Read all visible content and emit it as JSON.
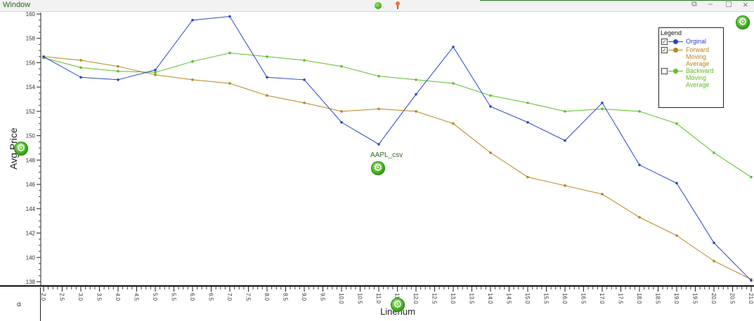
{
  "window": {
    "title": "Window"
  },
  "controls": {
    "restore": "⧉",
    "minimize": "–",
    "maximize": "☐",
    "close": "×"
  },
  "dataset_label": "AAPL_csv",
  "alpha_label": "α",
  "colors": {
    "original": "#2a47c8",
    "forward": "#b8861c",
    "backward": "#5cbf24"
  },
  "legend": {
    "title": "Legend",
    "items": [
      {
        "label": "Orginal",
        "checked": true,
        "color": "#2a47c8"
      },
      {
        "label": "Forward Moving Average",
        "checked": true,
        "color": "#b8861c"
      },
      {
        "label": "Backward Moving Average",
        "checked": false,
        "color": "#5cbf24"
      }
    ]
  },
  "chart_data": {
    "type": "line",
    "xlabel": "Linenum",
    "ylabel": "Avg Price",
    "xlim": [
      2.0,
      21.0
    ],
    "ylim": [
      138,
      160
    ],
    "x_ticks": [
      "2.0",
      "2.5",
      "3.0",
      "3.5",
      "4.0",
      "4.5",
      "5.0",
      "5.5",
      "6.0",
      "6.5",
      "7.0",
      "7.5",
      "8.0",
      "8.5",
      "9.0",
      "9.5",
      "10.0",
      "10.5",
      "11.0",
      "11.5",
      "12.0",
      "12.5",
      "13.0",
      "13.5",
      "14.0",
      "14.5",
      "15.0",
      "15.5",
      "16.0",
      "16.5",
      "17.0",
      "17.5",
      "18.0",
      "18.5",
      "19.0",
      "19.5",
      "20.0",
      "20.5",
      "21.0"
    ],
    "y_ticks": [
      "138",
      "140",
      "142",
      "144",
      "146",
      "148",
      "150",
      "152",
      "154",
      "156",
      "158",
      "160"
    ],
    "x": [
      2,
      3,
      4,
      5,
      6,
      7,
      8,
      9,
      10,
      11,
      12,
      13,
      14,
      15,
      16,
      17,
      18,
      19,
      20,
      21
    ],
    "series": [
      {
        "name": "Orginal",
        "values": [
          156.5,
          154.8,
          154.6,
          155.4,
          159.5,
          159.8,
          154.8,
          154.6,
          151.1,
          149.3,
          153.4,
          157.3,
          152.4,
          151.1,
          149.6,
          152.7,
          147.6,
          146.1,
          141.2,
          138.1
        ]
      },
      {
        "name": "Forward Moving Average",
        "values": [
          156.5,
          156.2,
          155.7,
          155.0,
          154.6,
          154.3,
          153.3,
          152.7,
          152.0,
          152.2,
          152.0,
          151.0,
          148.6,
          146.6,
          145.9,
          145.2,
          143.3,
          141.8,
          139.7,
          138.2
        ]
      },
      {
        "name": "Backward Moving Average",
        "values": [
          156.4,
          155.6,
          155.3,
          155.2,
          156.1,
          156.8,
          156.5,
          156.2,
          155.7,
          154.9,
          154.6,
          154.3,
          153.3,
          152.7,
          152.0,
          152.2,
          152.0,
          151.0,
          148.6,
          146.6
        ]
      }
    ],
    "grid": false,
    "legend_position": "top-right"
  }
}
